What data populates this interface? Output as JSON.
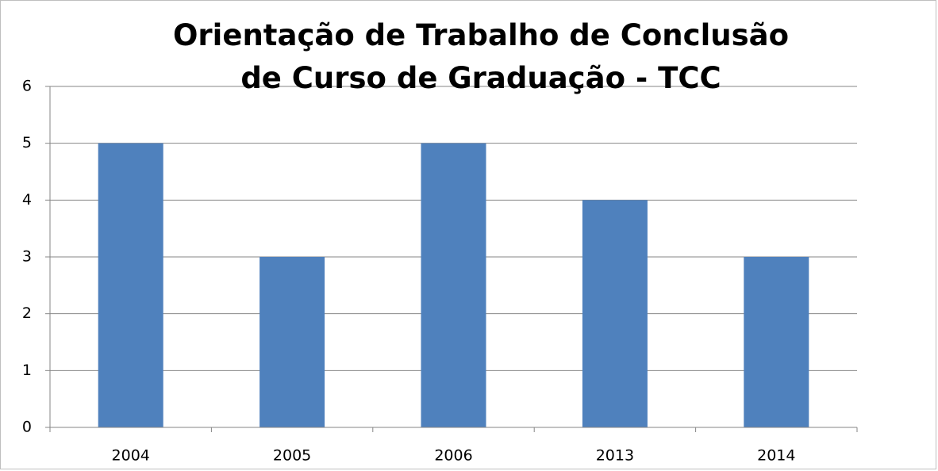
{
  "chart_data": {
    "type": "bar",
    "title": "Orientação de Trabalho de Conclusão de Curso de Graduação - TCC",
    "categories": [
      "2004",
      "2005",
      "2006",
      "2013",
      "2014"
    ],
    "values": [
      5,
      3,
      5,
      4,
      3
    ],
    "color": "#4f81bd",
    "ylim": [
      0,
      6
    ],
    "yticks": [
      0,
      1,
      2,
      3,
      4,
      5,
      6
    ],
    "grid": true
  }
}
